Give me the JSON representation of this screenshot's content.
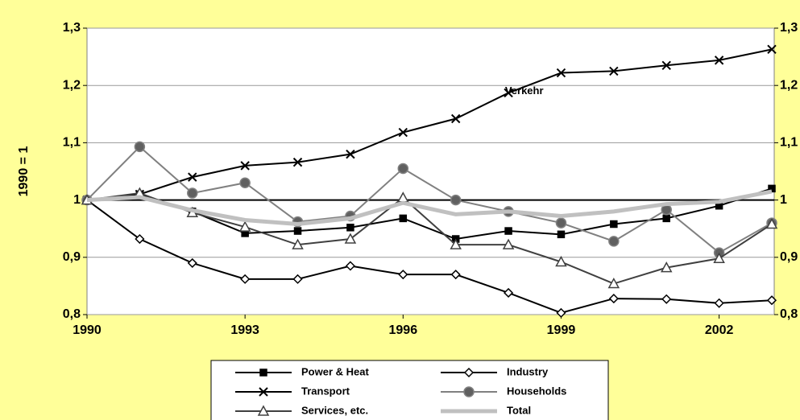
{
  "chart_data": {
    "type": "line",
    "y_label": "1990 = 1",
    "annotation": {
      "text": "Verkehr",
      "x": 1998.3,
      "y": 1.19
    },
    "x": [
      1990,
      1991,
      1992,
      1993,
      1994,
      1995,
      1996,
      1997,
      1998,
      1999,
      2000,
      2001,
      2002,
      2003
    ],
    "xlim": [
      1990,
      2003
    ],
    "xticks": [
      1990,
      1993,
      1996,
      1999,
      2002
    ],
    "ylim": [
      0.8,
      1.3
    ],
    "yticks": [
      {
        "value": 0.8,
        "label": "0,8"
      },
      {
        "value": 0.9,
        "label": "0,9"
      },
      1,
      {
        "value": 1.1,
        "label": "1,1"
      },
      {
        "value": 1.2,
        "label": "1,2"
      },
      {
        "value": 1.3,
        "label": "1,3"
      }
    ],
    "reference_line": 1,
    "legend": "bottom",
    "series": [
      {
        "name": "Power & Heat",
        "color": "#000000",
        "marker": "square",
        "values": [
          1.0,
          1.01,
          0.98,
          0.942,
          0.946,
          0.952,
          0.968,
          0.932,
          0.946,
          0.94,
          0.958,
          0.968,
          0.99,
          1.02
        ]
      },
      {
        "name": "Industry",
        "color": "#000000",
        "marker": "diamond",
        "values": [
          1.0,
          0.932,
          0.89,
          0.862,
          0.862,
          0.885,
          0.87,
          0.87,
          0.838,
          0.803,
          0.828,
          0.827,
          0.82,
          0.825
        ]
      },
      {
        "name": "Transport",
        "color": "#000000",
        "marker": "x",
        "values": [
          1.0,
          1.01,
          1.04,
          1.06,
          1.066,
          1.08,
          1.118,
          1.142,
          1.187,
          1.222,
          1.225,
          1.235,
          1.244,
          1.263
        ]
      },
      {
        "name": "Households",
        "color": "#808080",
        "marker": "circle",
        "values": [
          1.0,
          1.093,
          1.012,
          1.03,
          0.962,
          0.972,
          1.055,
          1.0,
          0.98,
          0.96,
          0.928,
          0.983,
          0.908,
          0.96
        ]
      },
      {
        "name": "Services, etc.",
        "color": "#404040",
        "marker": "triangle",
        "values": [
          1.0,
          1.012,
          0.978,
          0.953,
          0.922,
          0.932,
          1.004,
          0.922,
          0.922,
          0.892,
          0.854,
          0.882,
          0.898,
          0.958
        ]
      },
      {
        "name": "Total",
        "color": "#c0c0c0",
        "marker": null,
        "values": [
          1.0,
          1.005,
          0.982,
          0.965,
          0.958,
          0.968,
          0.995,
          0.975,
          0.98,
          0.972,
          0.98,
          0.993,
          0.997,
          1.015
        ]
      }
    ]
  }
}
